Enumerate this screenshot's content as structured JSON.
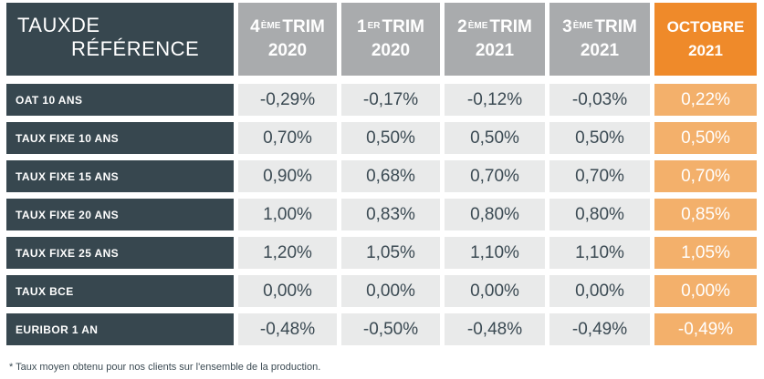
{
  "header": {
    "title_line1": "TAUX",
    "title_line2": "DE RÉFÉRENCE",
    "columns": [
      {
        "num": "4",
        "sup": "ÈME",
        "word": "TRIM",
        "year": "2020"
      },
      {
        "num": "1",
        "sup": "ER",
        "word": "TRIM",
        "year": "2020"
      },
      {
        "num": "2",
        "sup": "ÈME",
        "word": "TRIM",
        "year": "2021"
      },
      {
        "num": "3",
        "sup": "ÈME",
        "word": "TRIM",
        "year": "2021"
      },
      {
        "num": "",
        "sup": "",
        "word": "OCTOBRE",
        "year": "2021"
      }
    ]
  },
  "rows": [
    {
      "label": "OAT 10 ANS",
      "values": [
        "-0,29%",
        "-0,17%",
        "-0,12%",
        "-0,03%",
        "0,22%"
      ]
    },
    {
      "label": "TAUX FIXE 10 ANS",
      "values": [
        "0,70%",
        "0,50%",
        "0,50%",
        "0,50%",
        "0,50%"
      ]
    },
    {
      "label": "TAUX FIXE 15 ANS",
      "values": [
        "0,90%",
        "0,68%",
        "0,70%",
        "0,70%",
        "0,70%"
      ]
    },
    {
      "label": "TAUX FIXE 20 ANS",
      "values": [
        "1,00%",
        "0,83%",
        "0,80%",
        "0,80%",
        "0,85%"
      ]
    },
    {
      "label": "TAUX FIXE 25 ANS",
      "values": [
        "1,20%",
        "1,05%",
        "1,10%",
        "1,10%",
        "1,05%"
      ]
    },
    {
      "label": "TAUX BCE",
      "values": [
        "0,00%",
        "0,00%",
        "0,00%",
        "0,00%",
        "0,00%"
      ]
    },
    {
      "label": "EURIBOR 1 AN",
      "values": [
        "-0,48%",
        "-0,50%",
        "-0,48%",
        "-0,49%",
        "-0,49%"
      ]
    }
  ],
  "footnote": "* Taux moyen obtenu pour nos clients sur l'ensemble de la production.",
  "colors": {
    "dark": "#37474f",
    "header_gray": "#a9abad",
    "accent_orange": "#ef8a2a",
    "accent_light": "#f3b06b",
    "cell_bg": "#e9eaea"
  }
}
